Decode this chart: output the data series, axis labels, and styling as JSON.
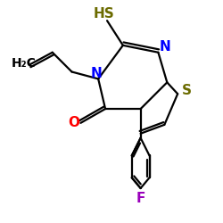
{
  "background_color": "#ffffff",
  "figsize": [
    2.5,
    2.5
  ],
  "dpi": 100,
  "bond_color": "#000000",
  "bond_width": 1.6,
  "colors": {
    "HS": "#6b6b00",
    "N": "#0000ff",
    "S": "#6b6b00",
    "O": "#ff0000",
    "F": "#9900bb",
    "C": "#000000"
  },
  "fontsize": 11
}
